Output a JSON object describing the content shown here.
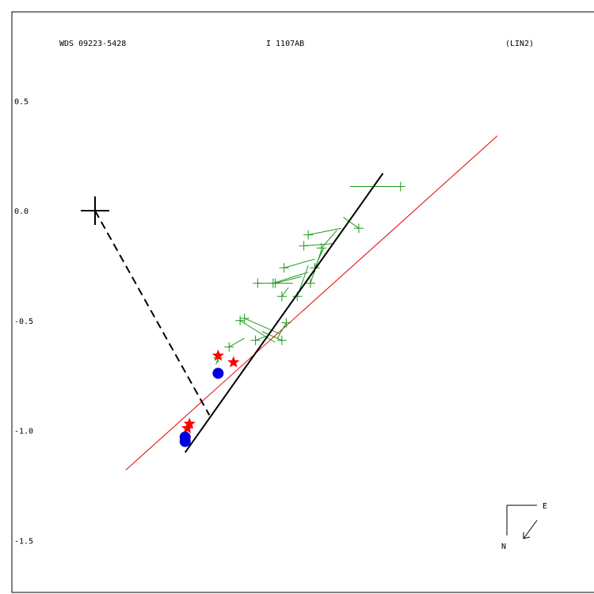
{
  "header": {
    "left": "WDS 09223-5428",
    "center": "I  1107AB",
    "right": "(LIN2)"
  },
  "compass": {
    "east": "E",
    "north": "N"
  },
  "chart_data": {
    "type": "scatter",
    "title": "",
    "xlabel": "",
    "ylabel": "",
    "ylim": [
      -1.75,
      0.83
    ],
    "xlim": [
      -0.38,
      2.21
    ],
    "yticks": [
      0.5,
      0.0,
      -0.5,
      -1.0,
      -1.5
    ],
    "ytick_labels": [
      "0.5",
      "0.0",
      "-0.5",
      "-1.0",
      "-1.5"
    ],
    "grid": false,
    "colors": {
      "observations": "#1a9a1a",
      "orbit_line": "#000000",
      "linear_fit": "#e00000",
      "predicted": "#ff0000",
      "predicted_position": "#0000dd",
      "primary": "#000000"
    },
    "primary": {
      "x": 0.0,
      "y": 0.0
    },
    "connector": {
      "from": [
        0.0,
        0.0
      ],
      "to": [
        0.52,
        -0.93
      ]
    },
    "orbit_line": {
      "from": [
        0.41,
        -1.1
      ],
      "to": [
        1.31,
        0.17
      ]
    },
    "linear_fit": {
      "from": [
        0.14,
        -1.18
      ],
      "to": [
        1.83,
        0.34
      ]
    },
    "observations": [
      {
        "obs": [
          1.39,
          0.11
        ],
        "fit": [
          1.16,
          0.11
        ]
      },
      {
        "obs": [
          1.2,
          -0.08
        ],
        "fit": [
          1.13,
          -0.03
        ]
      },
      {
        "obs": [
          0.97,
          -0.11
        ],
        "fit": [
          1.12,
          -0.08
        ]
      },
      {
        "obs": [
          0.95,
          -0.16
        ],
        "fit": [
          1.08,
          -0.15
        ]
      },
      {
        "obs": [
          1.03,
          -0.17
        ],
        "fit": [
          1.1,
          -0.09
        ]
      },
      {
        "obs": [
          0.86,
          -0.26
        ],
        "fit": [
          1.0,
          -0.22
        ]
      },
      {
        "obs": [
          1.0,
          -0.26
        ],
        "fit": [
          1.04,
          -0.17
        ]
      },
      {
        "obs": [
          0.81,
          -0.33
        ],
        "fit": [
          0.97,
          -0.28
        ]
      },
      {
        "obs": [
          0.74,
          -0.33
        ],
        "fit": [
          0.9,
          -0.33
        ]
      },
      {
        "obs": [
          0.82,
          -0.33
        ],
        "fit": [
          0.94,
          -0.3
        ]
      },
      {
        "obs": [
          0.98,
          -0.33
        ],
        "fit": [
          1.03,
          -0.18
        ]
      },
      {
        "obs": [
          0.85,
          -0.39
        ],
        "fit": [
          0.88,
          -0.35
        ]
      },
      {
        "obs": [
          0.92,
          -0.39
        ],
        "fit": [
          0.97,
          -0.25
        ]
      },
      {
        "obs": [
          0.68,
          -0.49
        ],
        "fit": [
          0.84,
          -0.56
        ]
      },
      {
        "obs": [
          0.66,
          -0.5
        ],
        "fit": [
          0.82,
          -0.6
        ]
      },
      {
        "obs": [
          0.87,
          -0.51
        ],
        "fit": [
          0.83,
          -0.58
        ]
      },
      {
        "obs": [
          0.73,
          -0.59
        ],
        "fit": [
          0.78,
          -0.57
        ]
      },
      {
        "obs": [
          0.85,
          -0.59
        ],
        "fit": [
          0.76,
          -0.55
        ]
      },
      {
        "obs": [
          0.56,
          -0.67
        ],
        "fit": [
          0.55,
          -0.7
        ]
      },
      {
        "obs": [
          0.61,
          -0.62
        ],
        "fit": [
          0.68,
          -0.58
        ]
      }
    ],
    "predicted_stars": [
      {
        "x": 0.56,
        "y": -0.66
      },
      {
        "x": 0.63,
        "y": -0.69
      },
      {
        "x": 0.43,
        "y": -0.97
      },
      {
        "x": 0.42,
        "y": -0.99
      }
    ],
    "predicted_dots": [
      {
        "x": 0.56,
        "y": -0.74
      },
      {
        "x": 0.41,
        "y": -1.03
      },
      {
        "x": 0.41,
        "y": -1.05
      }
    ]
  }
}
